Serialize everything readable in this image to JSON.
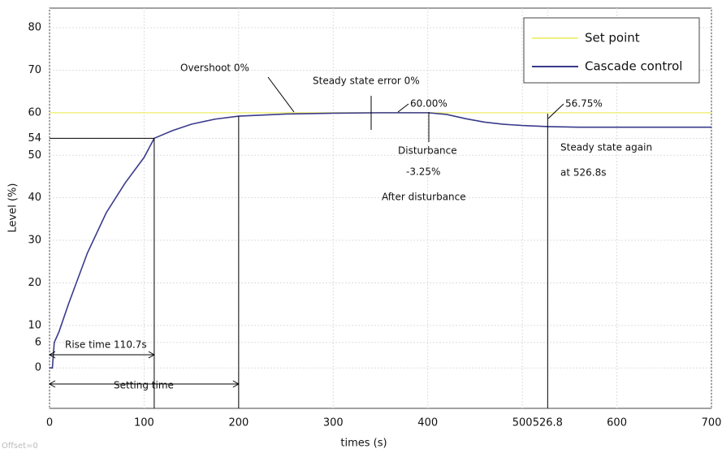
{
  "chart_data": {
    "type": "line",
    "x_label": "times (s)",
    "y_label": "Level (%)",
    "x": [
      0,
      3,
      5,
      10,
      20,
      40,
      60,
      80,
      100,
      110.7,
      130,
      150,
      175,
      200,
      250,
      300,
      350,
      400,
      420,
      440,
      460,
      480,
      500,
      526.8,
      560,
      600,
      650,
      700
    ],
    "series": [
      {
        "name": "Set point",
        "color": "#f0f080",
        "values": [
          60,
          60,
          60,
          60,
          60,
          60,
          60,
          60,
          60,
          60,
          60,
          60,
          60,
          60,
          60,
          60,
          60,
          60,
          60,
          60,
          60,
          60,
          60,
          60,
          60,
          60,
          60,
          60
        ]
      },
      {
        "name": "Cascade control",
        "color": "#3a3a8c",
        "values": [
          0,
          0,
          6,
          8.5,
          15,
          27,
          36.5,
          43.5,
          49.5,
          54,
          55.8,
          57.3,
          58.5,
          59.2,
          59.7,
          59.9,
          60,
          60,
          59.6,
          58.6,
          57.8,
          57.3,
          57,
          56.75,
          56.6,
          56.6,
          56.6,
          56.6
        ]
      }
    ],
    "xlim": [
      0,
      700
    ],
    "xticks": [
      0,
      100,
      200,
      300,
      400,
      500,
      526.8,
      600,
      700
    ],
    "ylim": [
      -9.5,
      84.6
    ],
    "yticks": [
      0,
      6,
      10,
      20,
      30,
      40,
      50,
      54,
      60,
      70,
      80
    ],
    "grid": true,
    "legend": "upper right",
    "annotations": [
      "Overshoot 0%",
      "Steady state error 0%",
      "60.00%",
      "Disturbance",
      "-3.25%",
      "After disturbance",
      "56.75%",
      "Steady state again",
      "at 526.8s",
      "Rise time 110.7s",
      "Setting time"
    ],
    "footer": "Offset=0"
  }
}
